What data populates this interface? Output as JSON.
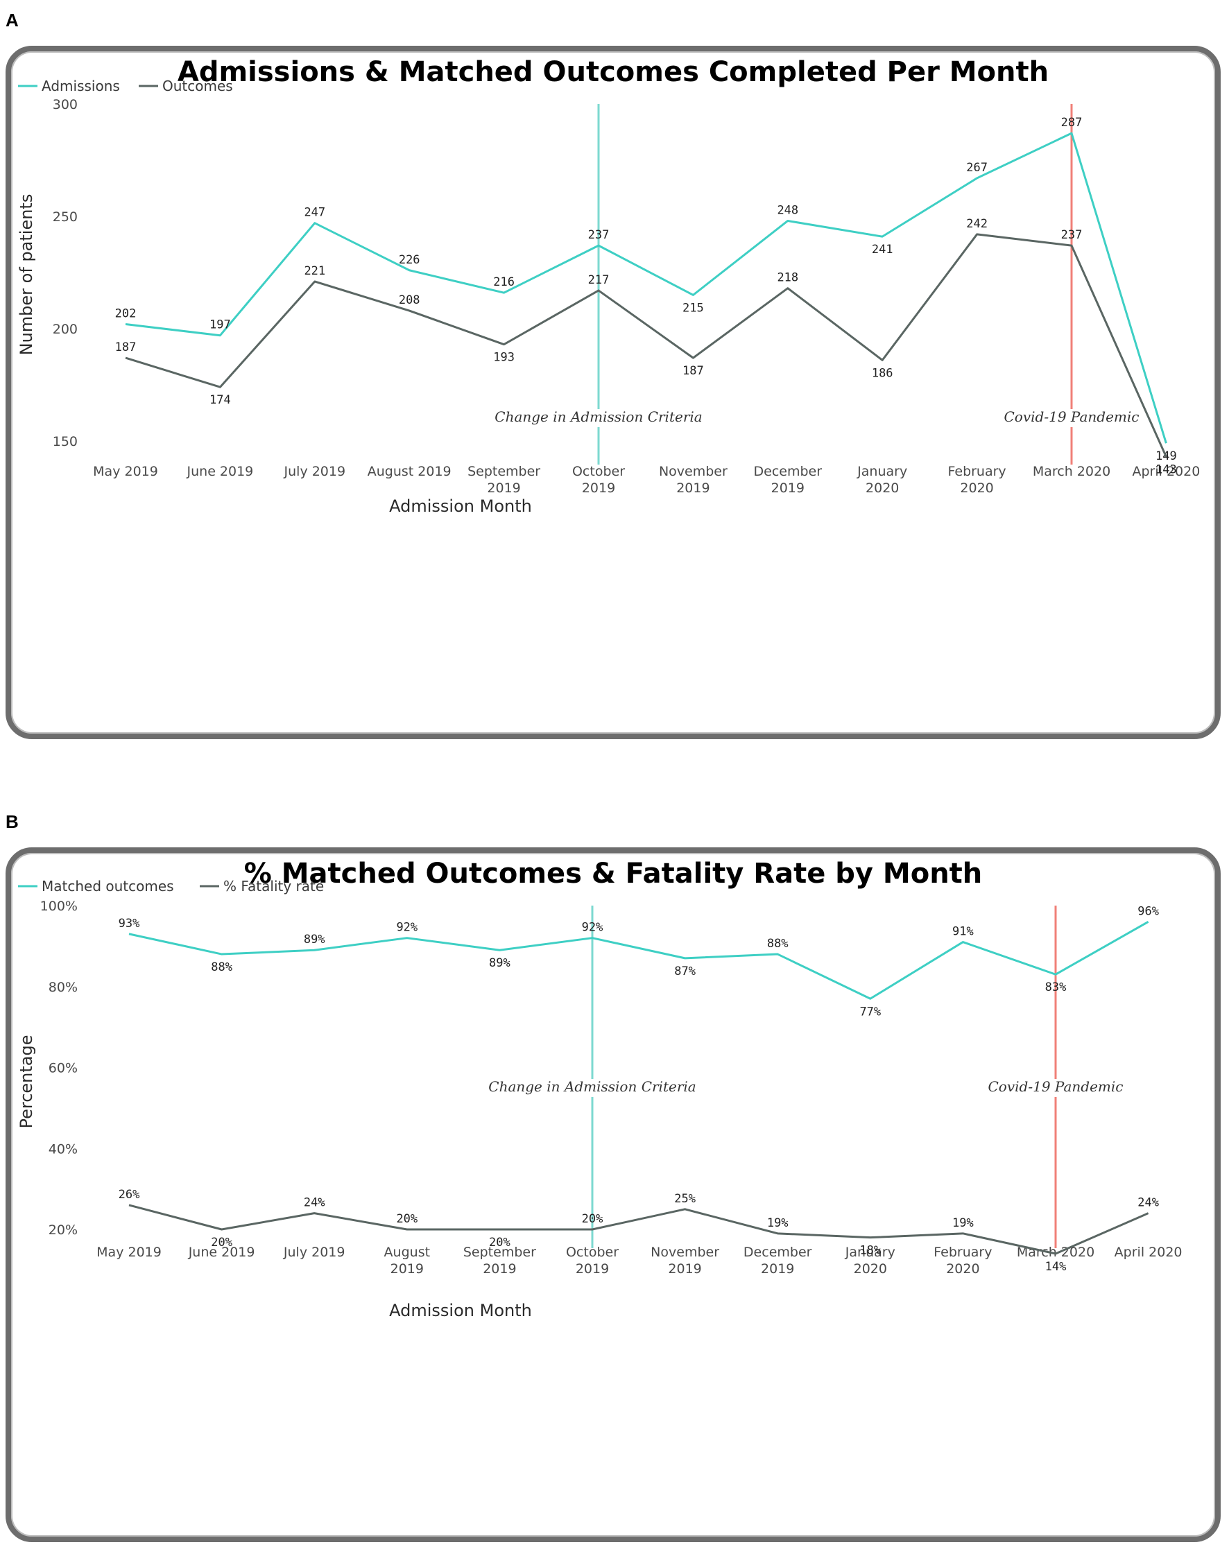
{
  "colors": {
    "series1": "#3ecfc4",
    "series2": "#5a6663",
    "event_line_1": "#7dd9d0",
    "event_line_2": "#f08078"
  },
  "panels": {
    "a": {
      "letter": "A"
    },
    "b": {
      "letter": "B"
    }
  },
  "chart_data": [
    {
      "type": "line",
      "title": "Admissions & Matched Outcomes Completed Per Month",
      "xlabel": "Admission Month",
      "ylabel": "Number of patients",
      "ylim": [
        150,
        300
      ],
      "yticks": [
        "300",
        "250",
        "200",
        "150"
      ],
      "categories": [
        [
          "May 2019"
        ],
        [
          "June 2019"
        ],
        [
          "July 2019"
        ],
        [
          "August 2019"
        ],
        [
          "September",
          "2019"
        ],
        [
          "October",
          "2019"
        ],
        [
          "November",
          "2019"
        ],
        [
          "December",
          "2019"
        ],
        [
          "January",
          "2020"
        ],
        [
          "February",
          "2020"
        ],
        [
          "March 2020"
        ],
        [
          "April 2020"
        ]
      ],
      "series": [
        {
          "name": "Admissions",
          "values": [
            202,
            197,
            247,
            226,
            216,
            237,
            215,
            248,
            241,
            267,
            287,
            149
          ],
          "labels": [
            "202",
            "197",
            "247",
            "226",
            "216",
            "237",
            "215",
            "248",
            "241",
            "267",
            "287",
            "149"
          ]
        },
        {
          "name": "Outcomes",
          "values": [
            187,
            174,
            221,
            208,
            193,
            217,
            187,
            218,
            186,
            242,
            237,
            143
          ],
          "labels": [
            "187",
            "174",
            "221",
            "208",
            "193",
            "217",
            "187",
            "218",
            "186",
            "242",
            "237",
            "143"
          ]
        }
      ],
      "annotations": [
        {
          "text": "Change in Admission Criteria",
          "at_category": 5
        },
        {
          "text": "Covid-19 Pandemic",
          "at_category": 10
        }
      ]
    },
    {
      "type": "line",
      "title": "% Matched Outcomes & Fatality Rate by Month",
      "xlabel": "Admission Month",
      "ylabel": "Percentage",
      "ylim": [
        10,
        100
      ],
      "yticks": [
        "100%",
        "80%",
        "60%",
        "40%",
        "20%"
      ],
      "categories": [
        [
          "May 2019"
        ],
        [
          "June 2019"
        ],
        [
          "July 2019"
        ],
        [
          "August",
          "2019"
        ],
        [
          "September",
          "2019"
        ],
        [
          "October",
          "2019"
        ],
        [
          "November",
          "2019"
        ],
        [
          "December",
          "2019"
        ],
        [
          "January",
          "2020"
        ],
        [
          "February",
          "2020"
        ],
        [
          "March 2020"
        ],
        [
          "April 2020"
        ]
      ],
      "series": [
        {
          "name": "Matched outcomes",
          "values": [
            93,
            88,
            89,
            92,
            89,
            92,
            87,
            88,
            77,
            91,
            83,
            96
          ],
          "labels": [
            "93%",
            "88%",
            "89%",
            "92%",
            "89%",
            "92%",
            "87%",
            "88%",
            "77%",
            "91%",
            "83%",
            "96%"
          ]
        },
        {
          "name": "% Fatality rate",
          "values": [
            26,
            20,
            24,
            20,
            20,
            20,
            25,
            19,
            18,
            19,
            14,
            24
          ],
          "labels": [
            "26%",
            "20%",
            "24%",
            "20%",
            "20%",
            "20%",
            "25%",
            "19%",
            "18%",
            "19%",
            "14%",
            "24%"
          ]
        }
      ],
      "annotations": [
        {
          "text": "Change in Admission Criteria",
          "at_category": 5
        },
        {
          "text": "Covid-19 Pandemic",
          "at_category": 10
        }
      ]
    }
  ]
}
